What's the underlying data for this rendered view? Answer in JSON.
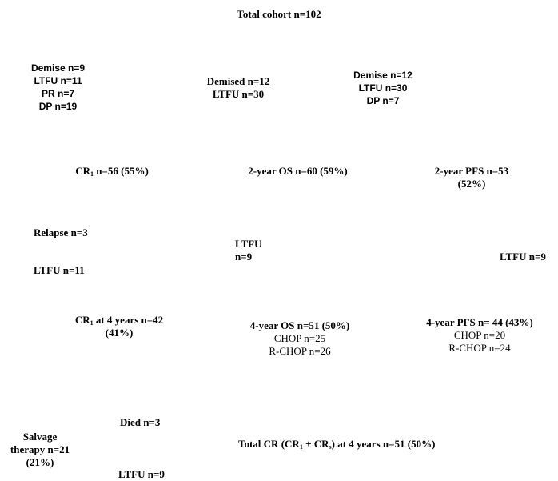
{
  "title": "Total cohort n=102",
  "exclusions_cr1": [
    "Demise n=9",
    "LTFU n=11",
    "PR n=7",
    "DP n=19"
  ],
  "exclusions_os": [
    "Demised n=12",
    "LTFU n=30"
  ],
  "exclusions_pfs": [
    "Demise n=12",
    "LTFU n=30",
    "DP n=7"
  ],
  "cr1": {
    "prefix": "CR",
    "sub": "1",
    "suffix": " n=56 (55%)"
  },
  "os_2yr": "2-year OS n=60 (59%)",
  "pfs_2yr": [
    "2-year PFS n=53",
    "(52%)"
  ],
  "relapse": "Relapse n=3",
  "ltfu_cr1": "LTFU n=11",
  "ltfu_os": [
    "LTFU",
    "n=9"
  ],
  "ltfu_pfs": "LTFU n=9",
  "cr1_4yr": {
    "prefix": "CR",
    "sub": "1",
    "suffix": " at 4 years n=42",
    "line2": "(41%)"
  },
  "os_4yr": {
    "title": "4-year OS n=51 (50%)",
    "chop": "CHOP n=25",
    "rchop": "R-CHOP n=26"
  },
  "pfs_4yr": {
    "title": "4-year PFS n= 44 (43%)",
    "chop": "CHOP n=20",
    "rchop": "R-CHOP n=24"
  },
  "died": "Died n=3",
  "salvage": [
    "Salvage",
    "therapy n=21",
    "(21%)"
  ],
  "ltfu_bottom": "LTFU n=9",
  "total_cr": {
    "p1": "Total CR (CR",
    "s1": "1",
    "p2": " + CR",
    "s2": "s",
    "p3": ") at 4 years n=51 (50%)"
  }
}
